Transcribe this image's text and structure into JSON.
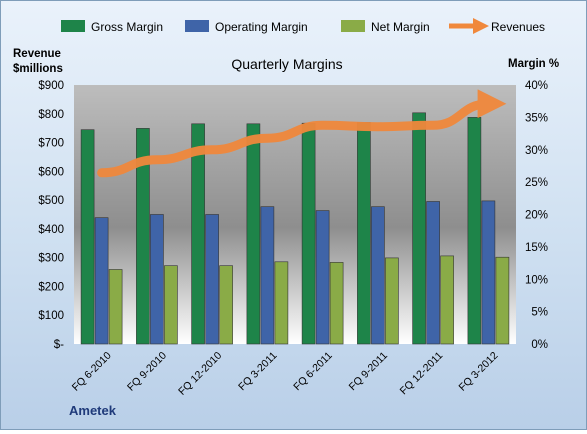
{
  "chart_data": {
    "type": "bar",
    "title": "Quarterly Margins",
    "company": "Ametek",
    "categories": [
      "FQ 6-2010",
      "FQ 9-2010",
      "FQ 12-2010",
      "FQ 3-2011",
      "FQ 6-2011",
      "FQ 9-2011",
      "FQ 12-2011",
      "FQ 3-2012"
    ],
    "series": [
      {
        "name": "Gross Margin",
        "axis": "right",
        "color": "#1e8449",
        "values": [
          33.1,
          33.3,
          34.0,
          34.0,
          34.1,
          34.2,
          35.7,
          35.0
        ]
      },
      {
        "name": "Operating Margin",
        "axis": "right",
        "color": "#3f64a8",
        "values": [
          19.5,
          20.0,
          20.0,
          21.2,
          20.6,
          21.2,
          22.0,
          22.1
        ]
      },
      {
        "name": "Net Margin",
        "axis": "right",
        "color": "#8aab47",
        "values": [
          11.5,
          12.1,
          12.1,
          12.7,
          12.6,
          13.3,
          13.6,
          13.4
        ]
      },
      {
        "name": "Revenues",
        "axis": "left",
        "type": "line",
        "color": "#f0883c",
        "values": [
          595,
          640,
          675,
          715,
          760,
          755,
          760,
          835
        ]
      }
    ],
    "left_axis": {
      "label_line1": "Revenue",
      "label_line2": "$millions",
      "min": 0,
      "max": 900,
      "ticks": [
        "$-",
        "$100",
        "$200",
        "$300",
        "$400",
        "$500",
        "$600",
        "$700",
        "$800",
        "$900"
      ]
    },
    "right_axis": {
      "label": "Margin %",
      "min": 0,
      "max": 40,
      "ticks": [
        "0%",
        "5%",
        "10%",
        "15%",
        "20%",
        "25%",
        "30%",
        "35%",
        "40%"
      ]
    },
    "grid": false,
    "legend": "top"
  }
}
